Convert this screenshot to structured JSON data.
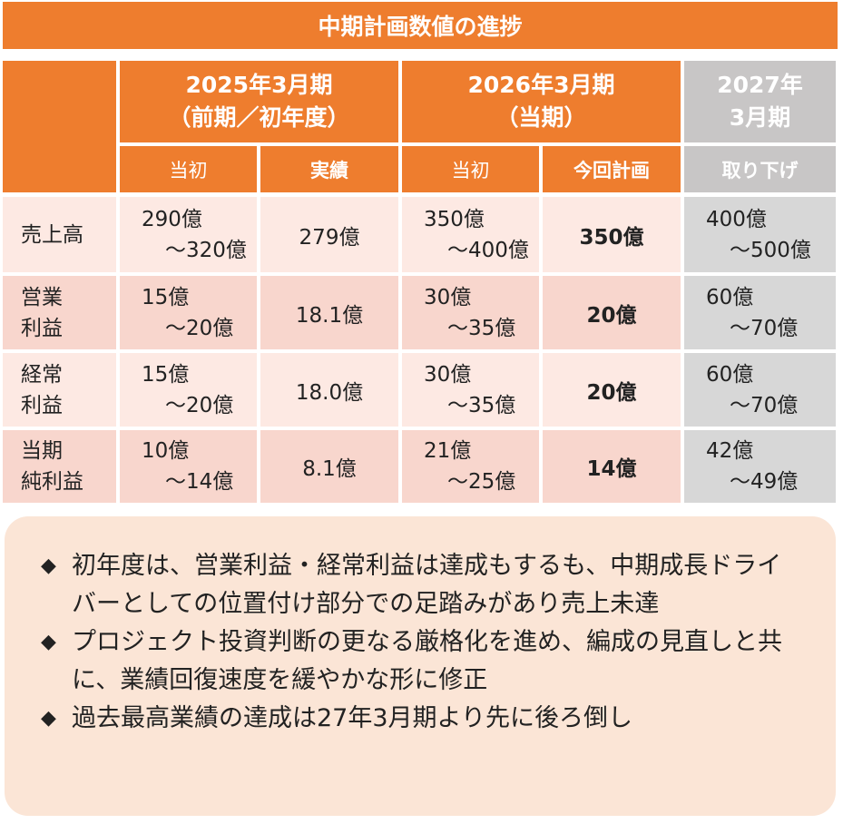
{
  "title": "中期計画数値の進捗",
  "columns": {
    "fy2025": {
      "line1": "2025年3月期",
      "line2": "（前期／初年度）"
    },
    "fy2026": {
      "line1": "2026年3月期",
      "line2": "（当期）"
    },
    "fy2027": {
      "line1": "2027年",
      "line2": "3月期"
    },
    "sub": [
      "当初",
      "実績",
      "当初",
      "今回計画",
      "取り下げ"
    ]
  },
  "rows": [
    {
      "label1": "売上高",
      "label2": "",
      "c1a": "290億",
      "c1b": "～320億",
      "c2": "279億",
      "c3a": "350億",
      "c3b": "～400億",
      "c4": "350億",
      "c5a": "400億",
      "c5b": "～500億"
    },
    {
      "label1": "営業",
      "label2": "利益",
      "c1a": "15億",
      "c1b": "～20億",
      "c2": "18.1億",
      "c3a": "30億",
      "c3b": "～35億",
      "c4": "20億",
      "c5a": "60億",
      "c5b": "～70億"
    },
    {
      "label1": "経常",
      "label2": "利益",
      "c1a": "15億",
      "c1b": "～20億",
      "c2": "18.0億",
      "c3a": "30億",
      "c3b": "～35億",
      "c4": "20億",
      "c5a": "60億",
      "c5b": "～70億"
    },
    {
      "label1": "当期",
      "label2": "純利益",
      "c1a": "10億",
      "c1b": "～14億",
      "c2": "8.1億",
      "c3a": "21億",
      "c3b": "～25億",
      "c4": "14億",
      "c5a": "42億",
      "c5b": "～49億"
    }
  ],
  "notes": [
    "初年度は、営業利益・経常利益は達成もするも、中期成長ドライバーとしての位置付け部分での足踏みがあり売上未達",
    "プロジェクト投資判断の更なる厳格化を進め、編成の見直しと共に、業績回復速度を緩やかな形に修正",
    "過去最高業績の達成は27年3月期より先に後ろ倒し"
  ],
  "bullet_icon": "diamond-bullet-icon",
  "colors": {
    "accent": "#ee7d2e",
    "grey": "#c8c6c6",
    "row_light": "#fde9e3",
    "row_dark": "#f8d6cd",
    "note_bg": "#fbe5d6"
  }
}
